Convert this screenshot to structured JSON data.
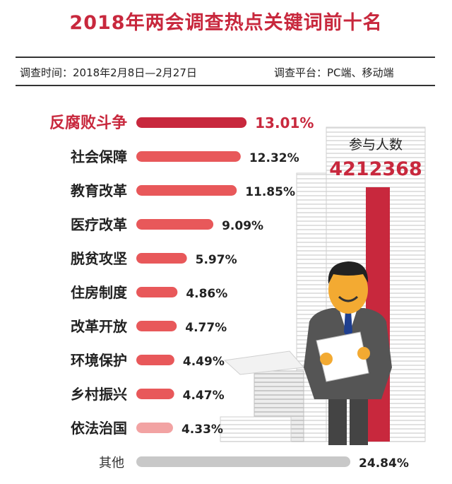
{
  "header": {
    "title": "2018年两会调查热点关键词前十名",
    "period": "调查时间：2018年2月8日—2月27日",
    "platform": "调查平台：PC端、移动端"
  },
  "participants": {
    "label": "参与人数",
    "value": "4212368"
  },
  "colors": {
    "accent": "#c8283d",
    "bar": "#e8585a",
    "bar_light": "#f2a3a3",
    "other": "#c8c8c8",
    "panel_stripe": "#e1e1e1",
    "suit": "#555555",
    "skin": "#f3aa32",
    "hair": "#222222"
  },
  "illustration": "man-holding-paper-icon",
  "chart_data": {
    "type": "bar",
    "orientation": "horizontal",
    "categories": [
      "反腐败斗争",
      "社会保障",
      "教育改革",
      "医疗改革",
      "脱贫攻坚",
      "住房制度",
      "改革开放",
      "环境保护",
      "乡村振兴",
      "依法治国",
      "其他"
    ],
    "values": [
      13.01,
      12.32,
      11.85,
      9.09,
      5.97,
      4.86,
      4.77,
      4.49,
      4.47,
      4.33,
      24.84
    ],
    "value_labels": [
      "13.01%",
      "12.32%",
      "11.85%",
      "9.09%",
      "5.97%",
      "4.86%",
      "4.77%",
      "4.49%",
      "4.47%",
      "4.33%",
      "24.84%"
    ],
    "unit": "%",
    "grid": false,
    "legend": "none"
  }
}
